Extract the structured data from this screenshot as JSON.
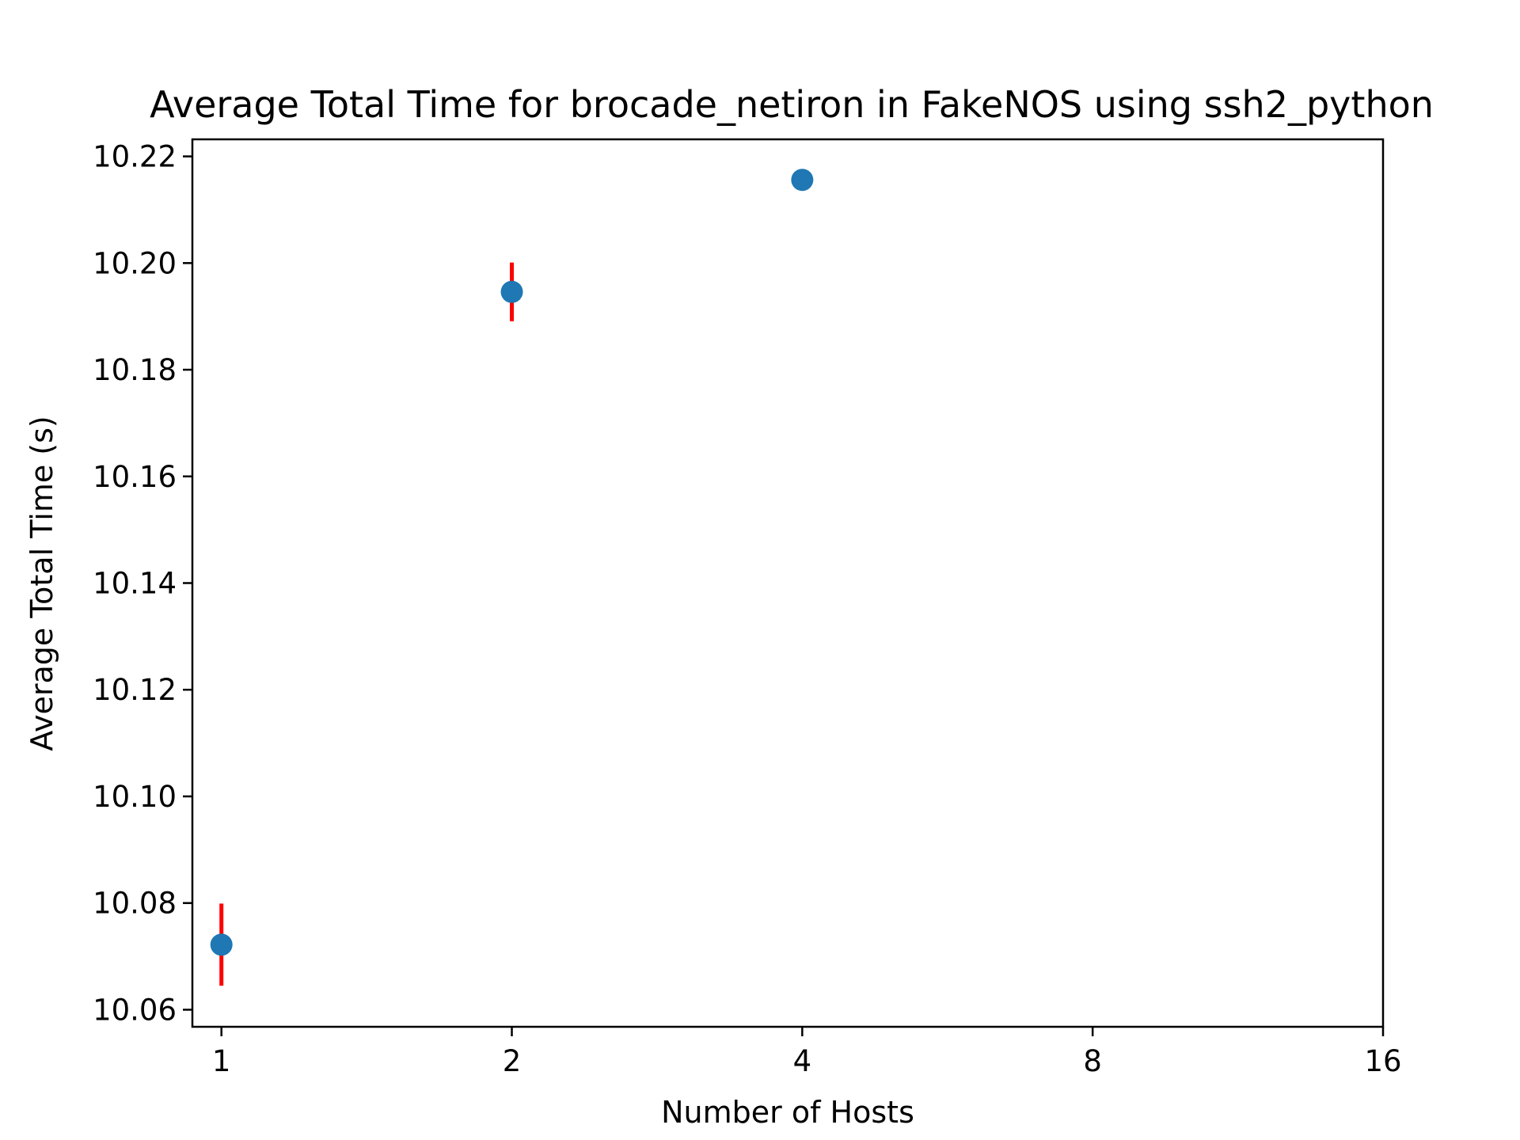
{
  "chart_data": {
    "type": "scatter",
    "title": "Average Total Time for brocade_netiron in FakeNOS using ssh2_python",
    "xlabel": "Number of Hosts",
    "ylabel": "Average Total Time (s)",
    "x_scale": "log2",
    "xlim": [
      0.933,
      16
    ],
    "ylim": [
      10.0568,
      10.2232
    ],
    "x_ticks": [
      1,
      2,
      4,
      8,
      16
    ],
    "x_tick_labels": [
      "1",
      "2",
      "4",
      "8",
      "16"
    ],
    "y_ticks": [
      10.06,
      10.08,
      10.1,
      10.12,
      10.14,
      10.16,
      10.18,
      10.2,
      10.22
    ],
    "y_tick_labels": [
      "10.06",
      "10.08",
      "10.10",
      "10.12",
      "10.14",
      "10.16",
      "10.18",
      "10.20",
      "10.22"
    ],
    "grid": false,
    "series": [
      {
        "x": [
          1,
          2,
          4
        ],
        "y": [
          10.0722,
          10.1946,
          10.2156
        ],
        "yerr": [
          0.0077,
          0.0055,
          0.0
        ],
        "color": "#1f77b4",
        "error_color": "#ff0000"
      }
    ]
  }
}
